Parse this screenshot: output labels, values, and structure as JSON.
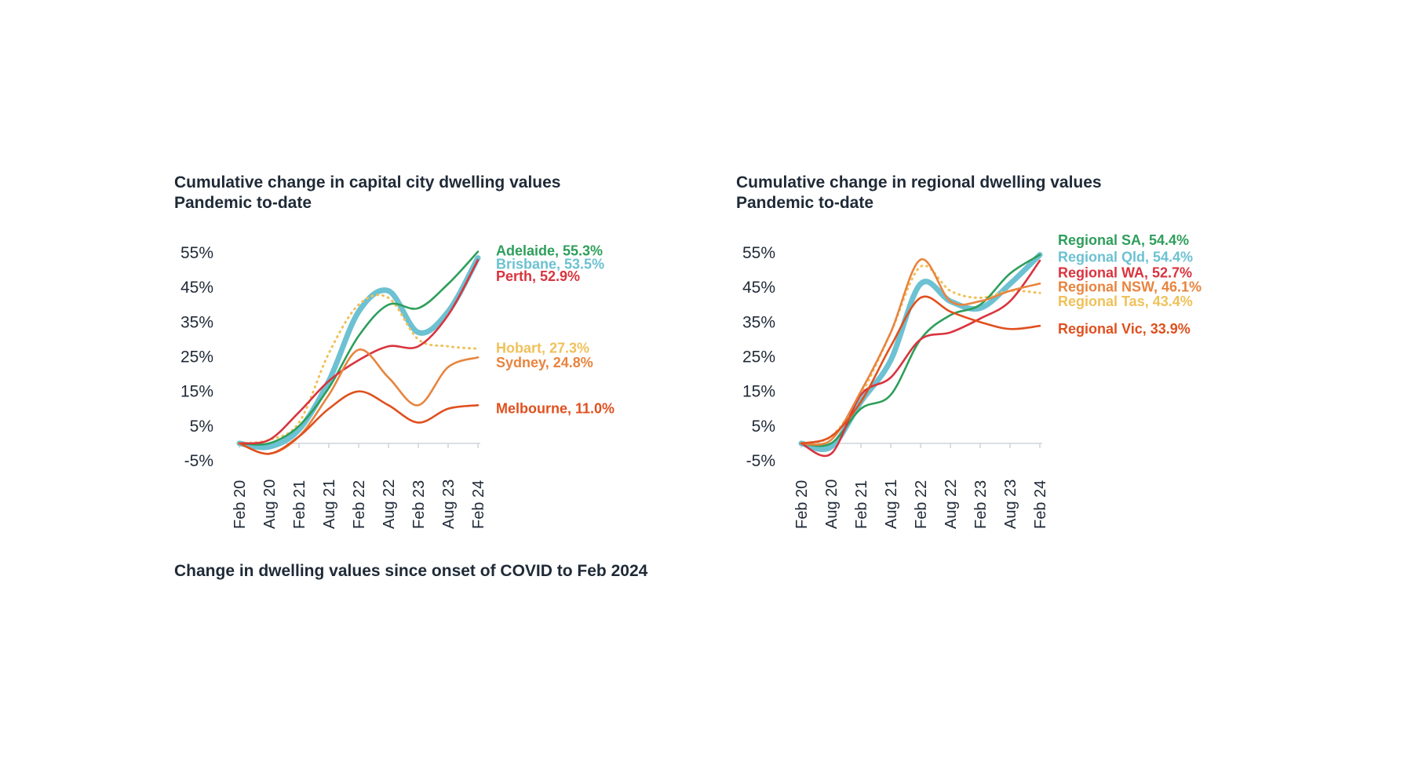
{
  "footer": "Change in dwelling values since onset of COVID to Feb 2024",
  "chart_data": [
    {
      "type": "line",
      "title": "Cumulative change in capital city dwelling values",
      "subtitle": "Pandemic to-date",
      "x": [
        "Feb 20",
        "Aug 20",
        "Feb 21",
        "Aug 21",
        "Feb 22",
        "Aug 22",
        "Feb 23",
        "Aug 23",
        "Feb 24"
      ],
      "xlabel": "",
      "ylabel": "",
      "ylim": [
        -5,
        55
      ],
      "yticks": [
        "55%",
        "45%",
        "35%",
        "25%",
        "15%",
        "5%",
        "-5%"
      ],
      "ytick_values": [
        55,
        45,
        35,
        25,
        15,
        5,
        -5
      ],
      "grid": false,
      "series": [
        {
          "name": "Adelaide",
          "label": "Adelaide, 55.3%",
          "color": "#2e9e5b",
          "width": 2.6,
          "dash": "",
          "label_y": 55.6,
          "values": [
            0,
            0,
            5,
            16,
            31,
            40,
            39,
            46,
            55.3
          ]
        },
        {
          "name": "Brisbane",
          "label": "Brisbane, 53.5%",
          "color": "#6cc1d2",
          "width": 7,
          "dash": "",
          "label_y": 51.7,
          "values": [
            0,
            -1,
            4,
            18,
            38,
            44,
            32,
            38,
            53.5
          ]
        },
        {
          "name": "Perth",
          "label": "Perth, 52.9%",
          "color": "#d9343e",
          "width": 2.6,
          "dash": "",
          "label_y": 48.2,
          "values": [
            0,
            1,
            9,
            18,
            24,
            28,
            28,
            37,
            52.9
          ]
        },
        {
          "name": "Hobart",
          "label": "Hobart, 27.3%",
          "color": "#efc15a",
          "width": 3,
          "dash": "1 6",
          "label_y": 27.5,
          "values": [
            0,
            1,
            6,
            26,
            40,
            42,
            30,
            28,
            27.3
          ]
        },
        {
          "name": "Sydney",
          "label": "Sydney, 24.8%",
          "color": "#e8843f",
          "width": 2.6,
          "dash": "",
          "label_y": 23.3,
          "values": [
            0,
            -3,
            2,
            14,
            27,
            19,
            11,
            22,
            24.8
          ]
        },
        {
          "name": "Melbourne",
          "label": "Melbourne, 11.0%",
          "color": "#e0501e",
          "width": 2.6,
          "dash": "",
          "label_y": 10.1,
          "values": [
            0,
            -3,
            2,
            10,
            15,
            11,
            6,
            10,
            11.0
          ]
        }
      ]
    },
    {
      "type": "line",
      "title": "Cumulative change in regional dwelling values",
      "subtitle": "Pandemic to-date",
      "x": [
        "Feb 20",
        "Aug 20",
        "Feb 21",
        "Aug 21",
        "Feb 22",
        "Aug 22",
        "Feb 23",
        "Aug 23",
        "Feb 24"
      ],
      "xlabel": "",
      "ylabel": "",
      "ylim": [
        -5,
        55
      ],
      "yticks": [
        "55%",
        "45%",
        "35%",
        "25%",
        "15%",
        "5%",
        "-5%"
      ],
      "ytick_values": [
        55,
        45,
        35,
        25,
        15,
        5,
        -5
      ],
      "grid": false,
      "series": [
        {
          "name": "Regional SA",
          "label": "Regional SA, 54.4%",
          "color": "#2e9e5b",
          "width": 2.6,
          "dash": "",
          "label_y": 58.6,
          "values": [
            0,
            0,
            10,
            14,
            30,
            37,
            40,
            49,
            54.4
          ]
        },
        {
          "name": "Regional Qld",
          "label": "Regional Qld, 54.4%",
          "color": "#6cc1d2",
          "width": 7,
          "dash": "",
          "label_y": 53.8,
          "values": [
            0,
            -1,
            12,
            24,
            46,
            41,
            39,
            46,
            54.4
          ]
        },
        {
          "name": "Regional WA",
          "label": "Regional WA, 52.7%",
          "color": "#d9343e",
          "width": 2.6,
          "dash": "",
          "label_y": 49.2,
          "values": [
            0,
            -3,
            14,
            19,
            30,
            32,
            36,
            41,
            52.7
          ]
        },
        {
          "name": "Regional NSW",
          "label": "Regional NSW, 46.1%",
          "color": "#e8843f",
          "width": 2.6,
          "dash": "",
          "label_y": 45.2,
          "values": [
            0,
            1,
            15,
            32,
            53,
            41,
            41,
            44,
            46.1
          ]
        },
        {
          "name": "Regional Tas",
          "label": "Regional Tas, 43.4%",
          "color": "#efc15a",
          "width": 3,
          "dash": "1 6",
          "label_y": 41.0,
          "values": [
            0,
            2,
            14,
            32,
            51,
            44,
            42,
            44,
            43.4
          ]
        },
        {
          "name": "Regional Vic",
          "label": "Regional Vic, 33.9%",
          "color": "#e0501e",
          "width": 2.6,
          "dash": "",
          "label_y": 33.0,
          "values": [
            0,
            2,
            12,
            28,
            42,
            38,
            35,
            33,
            33.9
          ]
        }
      ]
    }
  ]
}
